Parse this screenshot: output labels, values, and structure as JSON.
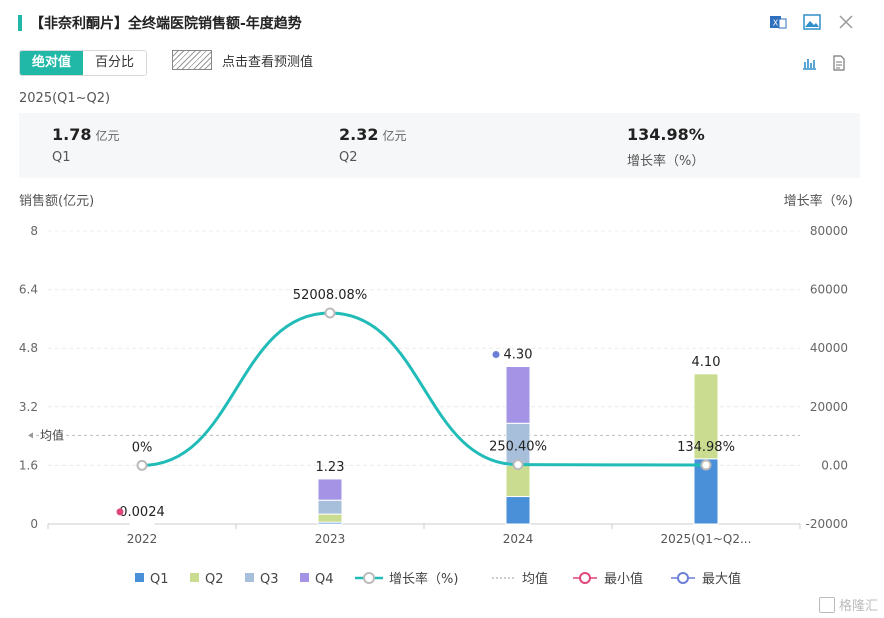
{
  "header": {
    "title": "【非奈利酮片】全终端医院销售额-年度趋势",
    "icons": [
      "excel-export-icon",
      "image-export-icon",
      "close-icon"
    ]
  },
  "toolbar": {
    "toggle": [
      "绝对值",
      "百分比"
    ],
    "active_toggle": "绝对值",
    "forecast_label": "点击查看预测值",
    "view_icons": [
      "bar-chart-view-icon",
      "table-view-icon"
    ]
  },
  "period": "2025(Q1~Q2)",
  "summary": [
    {
      "value": "1.78",
      "unit": "亿元",
      "label": "Q1"
    },
    {
      "value": "2.32",
      "unit": "亿元",
      "label": "Q2"
    },
    {
      "value": "134.98%",
      "unit": "",
      "label": "增长率（%）"
    }
  ],
  "chart_data": {
    "type": "bar",
    "left_axis_title": "销售额(亿元)",
    "right_axis_title": "增长率（%)",
    "categories": [
      "2022",
      "2023",
      "2024",
      "2025(Q1~Q2..."
    ],
    "left_ticks": [
      "0",
      "1.6",
      "3.2",
      "4.8",
      "6.4",
      "8"
    ],
    "right_ticks": [
      "-20000",
      "0.00",
      "20000",
      "40000",
      "60000",
      "80000"
    ],
    "ylim_left": [
      0,
      8
    ],
    "ylim_right": [
      -20000,
      80000
    ],
    "series": [
      {
        "name": "Q1",
        "color": "#4a90d9",
        "values": [
          0.0006,
          0.05,
          0.75,
          1.78
        ]
      },
      {
        "name": "Q2",
        "color": "#c9dc8f",
        "values": [
          0.0006,
          0.22,
          0.85,
          2.32
        ]
      },
      {
        "name": "Q3",
        "color": "#a7bfda",
        "values": [
          0.0006,
          0.38,
          1.15,
          0
        ]
      },
      {
        "name": "Q4",
        "color": "#a594e6",
        "values": [
          0.0006,
          0.58,
          1.55,
          0
        ]
      }
    ],
    "totals": [
      0.0024,
      1.23,
      4.3,
      4.1
    ],
    "total_labels": [
      "0.0024",
      "1.23",
      "4.30",
      "4.10"
    ],
    "growth": {
      "name": "增长率（%)",
      "color": "#22bcb8",
      "values": [
        0,
        52008.08,
        250.4,
        134.98
      ],
      "labels": [
        "0%",
        "52008.08%",
        "250.40%",
        "134.98%"
      ]
    },
    "average": {
      "name": "均值",
      "label": "均值",
      "value": 2.42
    },
    "min_marker": {
      "name": "最小值",
      "color": "#e0457b",
      "category_index": 0
    },
    "max_marker": {
      "name": "最大值",
      "color": "#6b7fd7",
      "category_index": 2
    },
    "legend_position": "bottom"
  },
  "watermark": "格隆汇"
}
